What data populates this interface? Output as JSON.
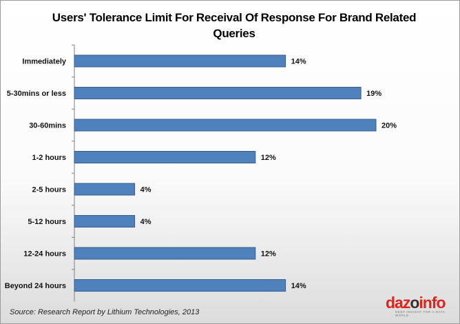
{
  "chart_data": {
    "type": "bar",
    "orientation": "horizontal",
    "title": "Users' Tolerance Limit For  Receival Of Response For Brand Related Queries",
    "title_lines": [
      "Users' Tolerance Limit For  Receival Of Response For Brand Related",
      "Queries"
    ],
    "categories": [
      "Immediately",
      "5-30mins or less",
      "30-60mins",
      "1-2 hours",
      "2-5 hours",
      "5-12 hours",
      "12-24 hours",
      "Beyond 24 hours"
    ],
    "values": [
      14,
      19,
      20,
      12,
      4,
      4,
      12,
      14
    ],
    "value_labels": [
      "14%",
      "19%",
      "20%",
      "12%",
      "4%",
      "4%",
      "12%",
      "14%"
    ],
    "unit": "%",
    "xlim": [
      0,
      20
    ],
    "grid": false,
    "legend": "none",
    "bar_color": "#4f81bd",
    "bar_border_color": "#385d8a"
  },
  "source": "Source: Research Report by Lithium Technologies, 2013",
  "logo": {
    "word_left": "daz",
    "word_mid": "o",
    "word_right": "info",
    "tagline": "DEEP INSIGHT FOR A DATA WORLD",
    "colors": {
      "brand_red": "#e0231b",
      "dark": "#333333"
    }
  }
}
